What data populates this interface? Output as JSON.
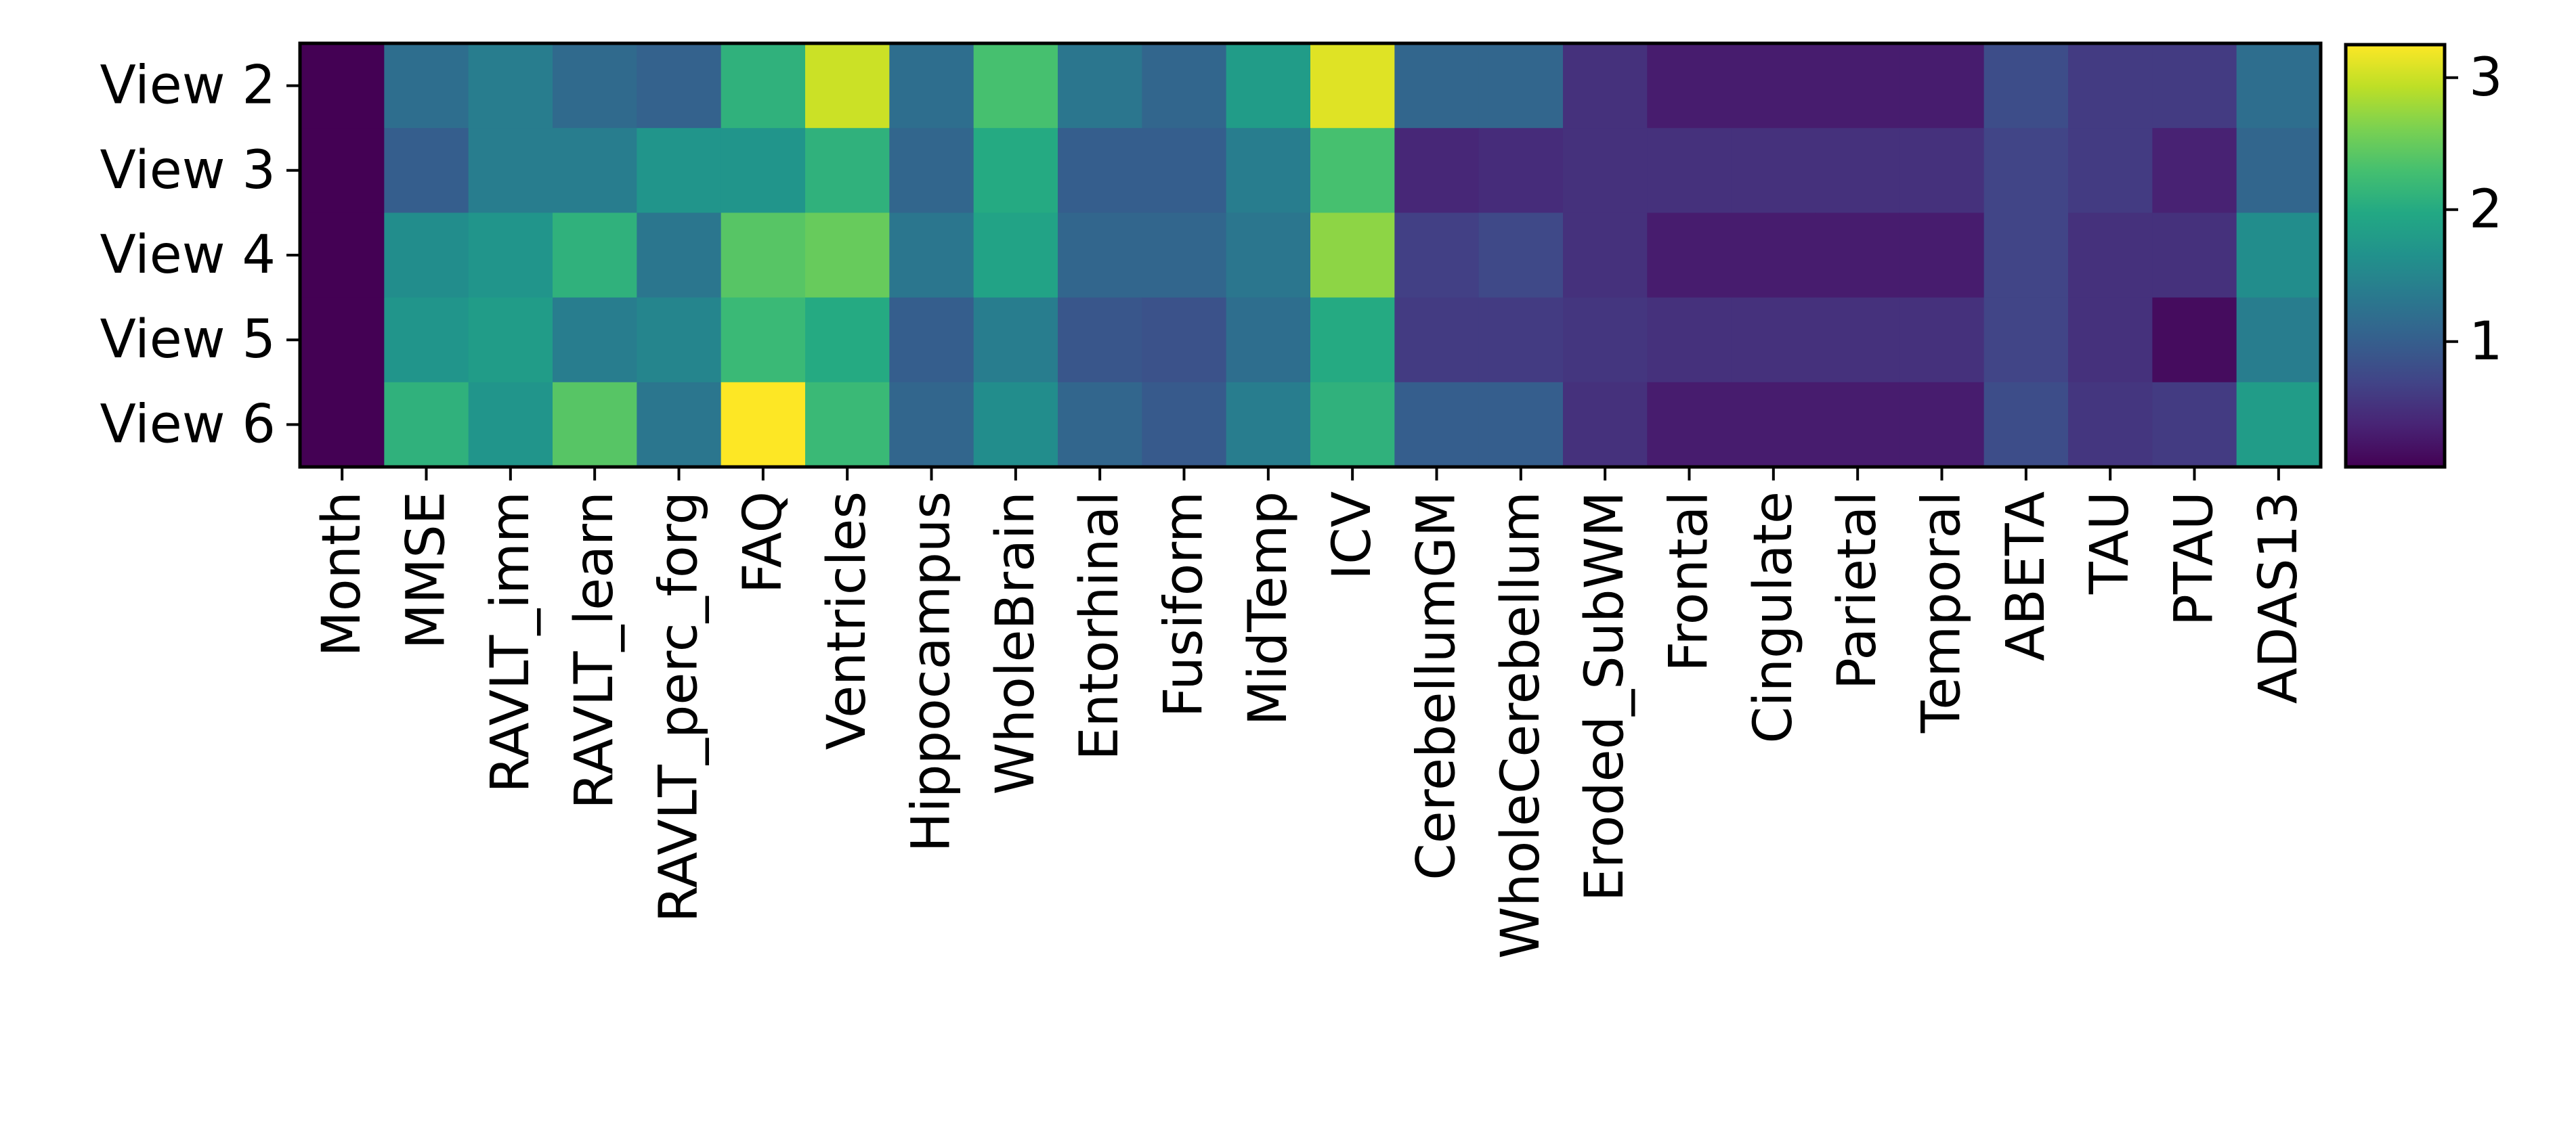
{
  "chart_data": {
    "type": "heatmap",
    "rows": [
      "View 2",
      "View 3",
      "View 4",
      "View 5",
      "View 6"
    ],
    "columns": [
      "Month",
      "MMSE",
      "RAVLT_imm",
      "RAVLT_learn",
      "RAVLT_perc_forg",
      "FAQ",
      "Ventricles",
      "Hippocampus",
      "WholeBrain",
      "Entorhinal",
      "Fusiform",
      "MidTemp",
      "ICV",
      "CerebellumGM",
      "WholeCerebellum",
      "Eroded_SubWM",
      "Frontal",
      "Cingulate",
      "Parietal",
      "Temporal",
      "ABETA",
      "TAU",
      "PTAU",
      "ADAS13"
    ],
    "values": [
      [
        0.05,
        1.2,
        1.4,
        1.15,
        1.05,
        2.1,
        3.0,
        1.2,
        2.3,
        1.3,
        1.1,
        1.8,
        3.1,
        1.1,
        1.1,
        0.5,
        0.3,
        0.3,
        0.3,
        0.3,
        0.8,
        0.6,
        0.6,
        1.2
      ],
      [
        0.05,
        1.0,
        1.4,
        1.4,
        1.7,
        1.7,
        2.1,
        1.1,
        2.0,
        1.0,
        1.0,
        1.4,
        2.3,
        0.4,
        0.45,
        0.5,
        0.5,
        0.5,
        0.5,
        0.5,
        0.7,
        0.6,
        0.35,
        1.1
      ],
      [
        0.05,
        1.6,
        1.7,
        2.1,
        1.3,
        2.4,
        2.5,
        1.3,
        1.9,
        1.1,
        1.1,
        1.3,
        2.7,
        0.65,
        0.75,
        0.5,
        0.3,
        0.3,
        0.3,
        0.3,
        0.7,
        0.5,
        0.5,
        1.6
      ],
      [
        0.05,
        1.7,
        1.8,
        1.4,
        1.5,
        2.2,
        2.0,
        1.0,
        1.4,
        0.9,
        0.85,
        1.2,
        2.0,
        0.6,
        0.6,
        0.55,
        0.5,
        0.5,
        0.5,
        0.5,
        0.7,
        0.5,
        0.15,
        1.4
      ],
      [
        0.05,
        2.1,
        1.7,
        2.4,
        1.3,
        3.25,
        2.2,
        1.1,
        1.6,
        1.1,
        0.95,
        1.4,
        2.1,
        1.0,
        1.0,
        0.5,
        0.3,
        0.3,
        0.3,
        0.3,
        0.8,
        0.55,
        0.6,
        1.8
      ]
    ],
    "vmin": 0.05,
    "vmax": 3.25,
    "colormap": "viridis",
    "colorbar_ticks": [
      1,
      2,
      3
    ]
  }
}
